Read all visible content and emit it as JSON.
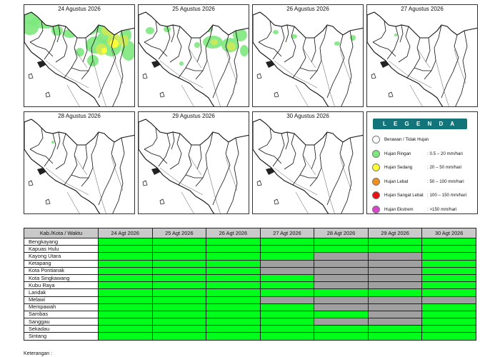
{
  "legend": {
    "title": "L E G E N D A",
    "items": [
      {
        "name": "Berawan / Tidak Hujan",
        "range": "",
        "color": "#ffffff"
      },
      {
        "name": "Hujan Ringan",
        "range": ": 0.5 – 20 mm/hari",
        "color": "#7de87d"
      },
      {
        "name": "Hujan Sedang",
        "range": ": 20 – 50 mm/hari",
        "color": "#ffff33"
      },
      {
        "name": "Hujan Lebat",
        "range": ": 50 – 100 mm/hari",
        "color": "#f0901e"
      },
      {
        "name": "Hujan Sangat Lebat",
        "range": ": 100 – 150 mm/hari",
        "color": "#e81010"
      },
      {
        "name": "Hujan Ekstrem",
        "range": ": >150 mm/hari",
        "color": "#d646c8"
      }
    ]
  },
  "maps": [
    {
      "date": "24 Agustus 2026",
      "rain": "heavy"
    },
    {
      "date": "25 Agustus 2026",
      "rain": "moderate"
    },
    {
      "date": "26 Agustus 2026",
      "rain": "light"
    },
    {
      "date": "27 Agustus 2026",
      "rain": "trace"
    },
    {
      "date": "28 Agustus 2026",
      "rain": "trace"
    },
    {
      "date": "29 Agustus 2026",
      "rain": "none"
    },
    {
      "date": "30 Agustus 2026",
      "rain": "none"
    }
  ],
  "table": {
    "corner": "Kab./Kota / Waktu",
    "columns": [
      "24 Agt 2026",
      "25 Agt 2026",
      "26 Agt 2026",
      "27 Agt 2026",
      "28 Agt 2026",
      "29 Agt 2026",
      "30 Agt 2026"
    ],
    "colors": {
      "G": "#00ff1a",
      "X": "#a0a0a0"
    },
    "rows": [
      {
        "name": "Bengkayang",
        "cells": "GGGGGGG"
      },
      {
        "name": "Kapuas Hulu",
        "cells": "GGGGGGG"
      },
      {
        "name": "Kayong Utara",
        "cells": "GGGGXXG"
      },
      {
        "name": "Ketapang",
        "cells": "GGGXXXG"
      },
      {
        "name": "Kota Pontianak",
        "cells": "GGGXXXG"
      },
      {
        "name": "Kota Singkawang",
        "cells": "GGGGXXG"
      },
      {
        "name": "Kubu Raya",
        "cells": "GGGGXXG"
      },
      {
        "name": "Landak",
        "cells": "GGGGGGG"
      },
      {
        "name": "Melawi",
        "cells": "GGGXXXX"
      },
      {
        "name": "Mempawah",
        "cells": "GGGGXXG"
      },
      {
        "name": "Sambas",
        "cells": "GGGGGXG"
      },
      {
        "name": "Sanggau",
        "cells": "GGGGXXG"
      },
      {
        "name": "Sekadau",
        "cells": "GGGGGGG"
      },
      {
        "name": "Sintang",
        "cells": "GGGGGGG"
      }
    ]
  },
  "note": "Keterangan :"
}
